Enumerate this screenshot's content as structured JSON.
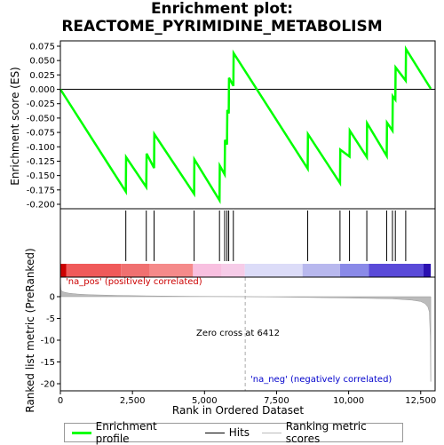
{
  "title_line1": "Enrichment plot:",
  "title_line2": "REACTOME_PYRIMIDINE_METABOLISM",
  "legend": {
    "profile": "Enrichment profile",
    "hits": "Hits",
    "ranking": "Ranking metric scores"
  },
  "colors": {
    "profile": "#00ff00",
    "hits": "#000000",
    "ranking": "#bbbbbb",
    "pos_label": "#cc0000",
    "neg_label": "#0000cc"
  },
  "chart_data": [
    {
      "type": "line",
      "panel": "enrichment",
      "ylabel": "Enrichment score (ES)",
      "xlim": [
        0,
        13000
      ],
      "ylim": [
        -0.2,
        0.075
      ],
      "yticks": [
        0.075,
        0.05,
        0.025,
        0.0,
        -0.025,
        -0.05,
        -0.075,
        -0.1,
        -0.125,
        -0.15,
        -0.175,
        -0.2
      ],
      "ytick_labels": [
        "0.075",
        "0.050",
        "0.025",
        "0.000",
        "-0.025",
        "-0.050",
        "-0.075",
        "-0.100",
        "-0.125",
        "-0.150",
        "-0.175",
        "-0.200"
      ],
      "series": [
        {
          "x": [
            0,
            2270,
            2280,
            2980,
            2990,
            3250,
            3260,
            4640,
            4650,
            5520,
            5530,
            5700,
            5710,
            5780,
            5790,
            5840,
            5850,
            6000,
            6010,
            8580,
            8590,
            9700,
            9710,
            10030,
            10040,
            10630,
            10640,
            11320,
            11330,
            11520,
            11530,
            11620,
            11630,
            11980,
            11990,
            12850
          ],
          "y": [
            0.0,
            -0.178,
            -0.118,
            -0.17,
            -0.112,
            -0.137,
            -0.078,
            -0.182,
            -0.122,
            -0.193,
            -0.133,
            -0.148,
            -0.088,
            -0.096,
            -0.036,
            -0.042,
            0.02,
            0.006,
            0.063,
            -0.138,
            -0.078,
            -0.163,
            -0.105,
            -0.117,
            -0.072,
            -0.118,
            -0.059,
            -0.116,
            -0.058,
            -0.072,
            -0.012,
            -0.018,
            0.038,
            0.015,
            0.07,
            0.001
          ]
        }
      ]
    },
    {
      "type": "hits",
      "panel": "hits",
      "x": [
        2270,
        2980,
        3250,
        4640,
        5520,
        5700,
        5780,
        5840,
        6000,
        8580,
        9700,
        10030,
        10630,
        11320,
        11520,
        11620,
        11980
      ]
    },
    {
      "type": "area",
      "panel": "ranking",
      "xlabel": "Rank in Ordered Dataset",
      "ylabel": "Ranked list metric (PreRanked)",
      "xlim": [
        0,
        13000
      ],
      "ylim": [
        -20,
        5
      ],
      "xticks": [
        0,
        2500,
        5000,
        7500,
        10000,
        12500
      ],
      "xtick_labels": [
        "0",
        "2,500",
        "5,000",
        "7,500",
        "10,000",
        "12,500"
      ],
      "yticks": [
        0,
        -5,
        -10,
        -15,
        -20
      ],
      "ytick_labels": [
        "0",
        "-5",
        "-10",
        "-15",
        "-20"
      ],
      "x": [
        0,
        20,
        60,
        150,
        300,
        600,
        1000,
        2000,
        3000,
        4500,
        6412,
        8000,
        10000,
        11500,
        12200,
        12500,
        12650,
        12750,
        12800,
        12830,
        12850
      ],
      "y": [
        5.0,
        1.6,
        1.2,
        1.0,
        0.8,
        0.6,
        0.45,
        0.28,
        0.18,
        0.08,
        0.0,
        -0.12,
        -0.3,
        -0.5,
        -0.8,
        -1.1,
        -1.6,
        -2.4,
        -3.5,
        -9.0,
        -19.5
      ],
      "zero_cross_text": "Zero cross at 6412",
      "zero_cross": 6412,
      "pos_label": "'na_pos' (positively correlated)",
      "neg_label": "'na_neg' (negatively correlated)"
    }
  ],
  "colorbar": [
    {
      "from": 0,
      "to": 200,
      "color": "#cc0000"
    },
    {
      "from": 200,
      "to": 2100,
      "color": "#f05a5a"
    },
    {
      "from": 2100,
      "to": 3100,
      "color": "#f07070"
    },
    {
      "from": 3100,
      "to": 4600,
      "color": "#f58a8a"
    },
    {
      "from": 4600,
      "to": 5600,
      "color": "#f8c0e0"
    },
    {
      "from": 5600,
      "to": 6400,
      "color": "#f6cce8"
    },
    {
      "from": 6400,
      "to": 8400,
      "color": "#dcdcf8"
    },
    {
      "from": 8400,
      "to": 9700,
      "color": "#b8b8ee"
    },
    {
      "from": 9700,
      "to": 10700,
      "color": "#8a8ae8"
    },
    {
      "from": 10700,
      "to": 12600,
      "color": "#5a4ad8"
    },
    {
      "from": 12600,
      "to": 12850,
      "color": "#2a10b0"
    }
  ]
}
